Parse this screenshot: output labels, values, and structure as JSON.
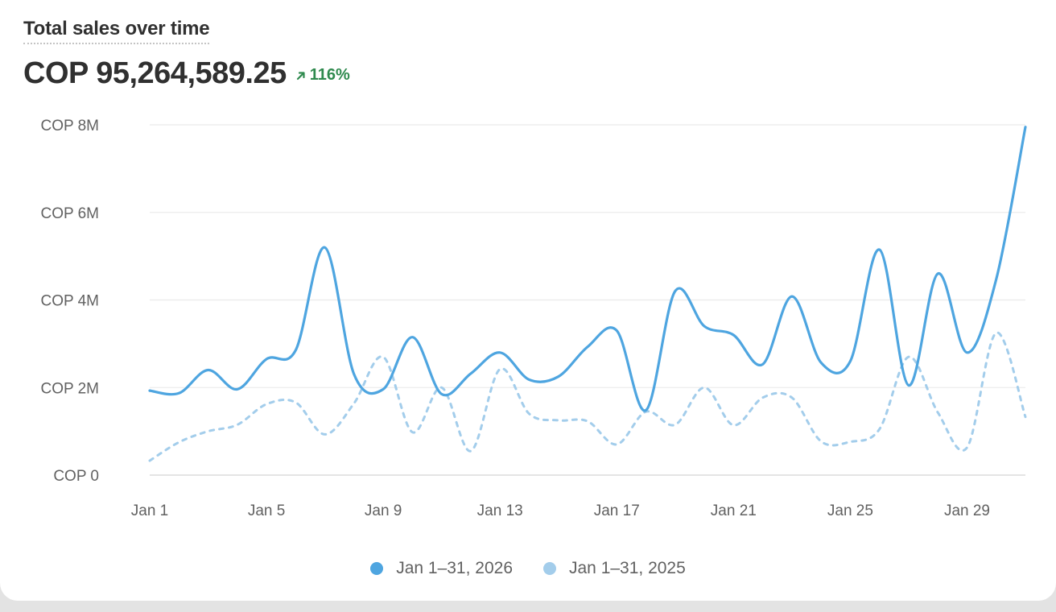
{
  "header": {
    "title": "Total sales over time",
    "total": "COP 95,264,589.25",
    "change": "116%",
    "change_icon": "arrow-up-right-icon"
  },
  "colors": {
    "current": "#4ea5e0",
    "previous": "#a3cdeb",
    "change_positive": "#2f8a4e"
  },
  "legend": {
    "current_label": "Jan 1–31, 2026",
    "previous_label": "Jan 1–31, 2025"
  },
  "chart_data": {
    "type": "line",
    "title": "Total sales over time",
    "x": [
      1,
      2,
      3,
      4,
      5,
      6,
      7,
      8,
      9,
      10,
      11,
      12,
      13,
      14,
      15,
      16,
      17,
      18,
      19,
      20,
      21,
      22,
      23,
      24,
      25,
      26,
      27,
      28,
      29,
      30,
      31
    ],
    "x_tick_labels": [
      "Jan 1",
      "Jan 5",
      "Jan 9",
      "Jan 13",
      "Jan 17",
      "Jan 21",
      "Jan 25",
      "Jan 29"
    ],
    "x_tick_days": [
      1,
      5,
      9,
      13,
      17,
      21,
      25,
      29
    ],
    "y_tick_labels": [
      "COP 0",
      "COP 2M",
      "COP 4M",
      "COP 6M",
      "COP 8M"
    ],
    "y_ticks": [
      0,
      2000000,
      4000000,
      6000000,
      8000000
    ],
    "ylim": [
      0,
      8000000
    ],
    "grid": true,
    "legend_position": "bottom-center",
    "series": [
      {
        "name": "Jan 1–31, 2026",
        "style": "solid",
        "values": [
          1930000,
          1870000,
          2400000,
          1960000,
          2650000,
          2850000,
          5200000,
          2300000,
          1960000,
          3150000,
          1850000,
          2320000,
          2800000,
          2180000,
          2250000,
          2930000,
          3300000,
          1480000,
          4200000,
          3400000,
          3200000,
          2530000,
          4080000,
          2570000,
          2600000,
          5150000,
          2050000,
          4600000,
          2800000,
          4470000,
          7950000
        ]
      },
      {
        "name": "Jan 1–31, 2025",
        "style": "dashed",
        "values": [
          330000,
          750000,
          1000000,
          1150000,
          1620000,
          1660000,
          930000,
          1640000,
          2700000,
          980000,
          2000000,
          550000,
          2420000,
          1400000,
          1250000,
          1230000,
          700000,
          1450000,
          1150000,
          2000000,
          1140000,
          1770000,
          1770000,
          770000,
          760000,
          1050000,
          2700000,
          1430000,
          630000,
          3250000,
          1330000
        ]
      }
    ]
  }
}
